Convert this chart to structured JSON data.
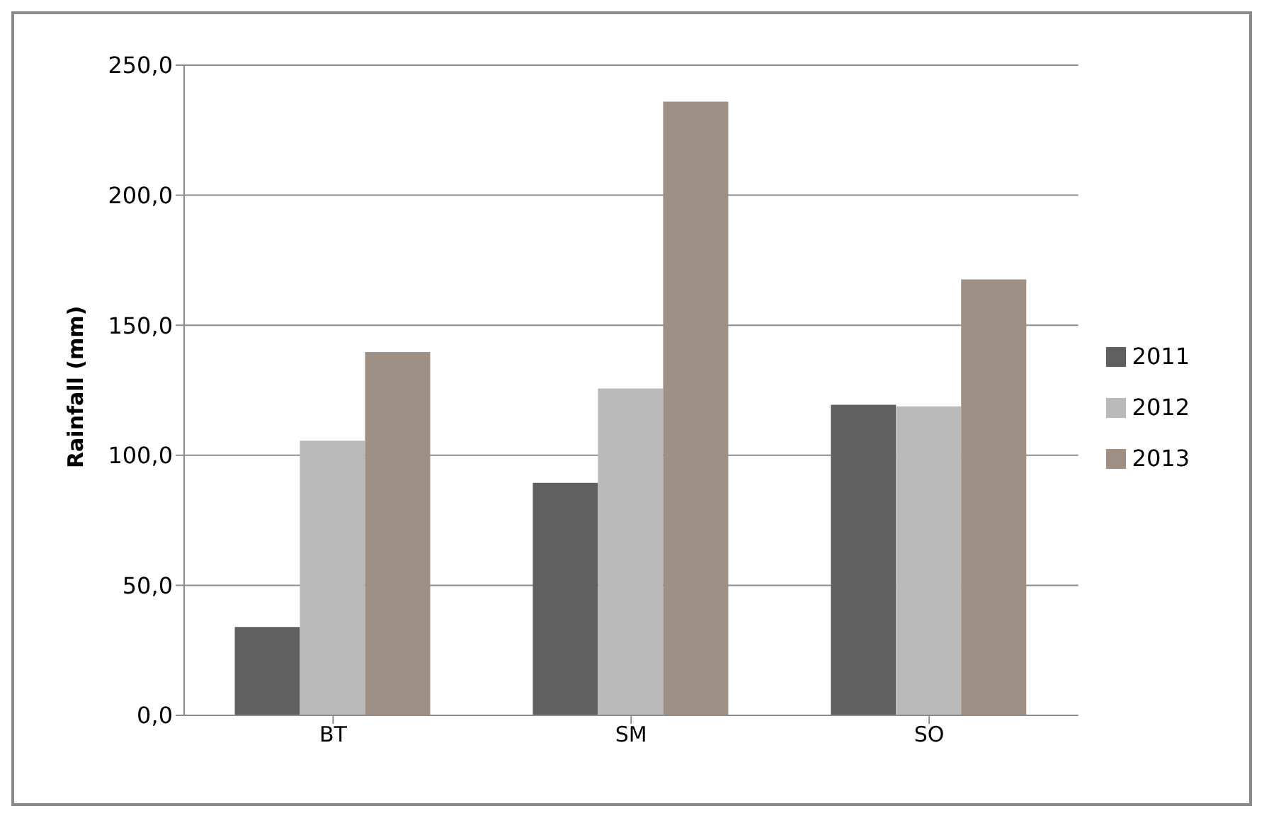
{
  "chart_data": {
    "type": "bar",
    "ylabel": "Rainfall (mm)",
    "categories": [
      "BT",
      "SM",
      "SO"
    ],
    "series": [
      {
        "name": "2011",
        "color": "#606060",
        "values": [
          34,
          89.4,
          119.4
        ]
      },
      {
        "name": "2012",
        "color": "#bababa",
        "values": [
          105.6,
          125.7,
          118.8
        ]
      },
      {
        "name": "2013",
        "color": "#9e9085",
        "values": [
          139.7,
          236,
          167.6
        ]
      }
    ],
    "ylim": [
      0,
      250
    ],
    "yticks": [
      {
        "value": 0,
        "label": "0,0"
      },
      {
        "value": 50,
        "label": "50,0"
      },
      {
        "value": 100,
        "label": "100,0"
      },
      {
        "value": 150,
        "label": "150,0"
      },
      {
        "value": 200,
        "label": "200,0"
      },
      {
        "value": 250,
        "label": "250,0"
      }
    ],
    "grid": "y",
    "legend": "right"
  }
}
